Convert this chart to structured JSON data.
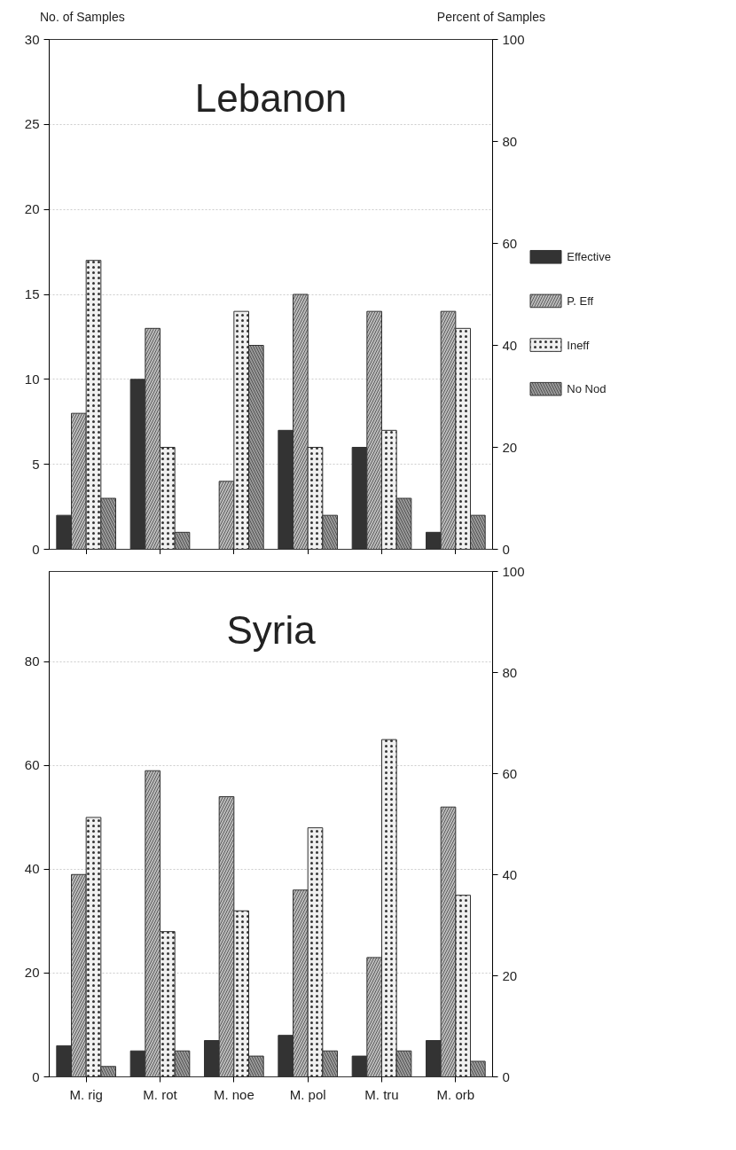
{
  "chart_data": [
    {
      "type": "bar",
      "title": "Lebanon",
      "ylabel": "No. of Samples",
      "y2label": "Percent of Samples",
      "categories": [
        null,
        null,
        null,
        null,
        null,
        null
      ],
      "series": [
        {
          "name": "Effective",
          "color": "#333333",
          "values": [
            2,
            10,
            0,
            7,
            6,
            1
          ]
        },
        {
          "name": "P. Eff",
          "color": "#bbbbbb",
          "values": [
            8,
            13,
            4,
            15,
            14,
            14
          ]
        },
        {
          "name": "Ineff",
          "color": "#f0f0f0",
          "values": [
            17,
            6,
            14,
            6,
            7,
            13
          ]
        },
        {
          "name": "No Nod",
          "color": "#999999",
          "values": [
            3,
            1,
            12,
            2,
            3,
            2
          ]
        }
      ],
      "ylim": [
        0,
        30
      ],
      "yticks": [
        0,
        5,
        10,
        15,
        20,
        25,
        30
      ],
      "y2lim": [
        0,
        100
      ],
      "y2ticks": [
        0,
        20,
        40,
        60,
        80,
        100
      ],
      "grid": "y",
      "legend": "right"
    },
    {
      "type": "bar",
      "title": "Syria",
      "categories": [
        "M. rig",
        "M. rot",
        "M. noe",
        "M. pol",
        "M. tru",
        "M. orb"
      ],
      "series": [
        {
          "color": "#333333",
          "values": [
            6,
            5,
            7,
            8,
            4,
            7
          ]
        },
        {
          "color": "#bbbbbb",
          "values": [
            39,
            59,
            54,
            36,
            23,
            52
          ]
        },
        {
          "color": "#f0f0f0",
          "values": [
            50,
            28,
            32,
            48,
            65,
            35
          ]
        },
        {
          "color": "#999999",
          "values": [
            2,
            5,
            4,
            5,
            5,
            3
          ]
        }
      ],
      "ylim": [
        0,
        97.4
      ],
      "yticks": [
        0,
        20,
        40,
        60,
        80
      ],
      "y2lim": [
        0,
        100
      ],
      "y2ticks": [
        0,
        20,
        40,
        60,
        80,
        100
      ],
      "grid": "y"
    }
  ]
}
